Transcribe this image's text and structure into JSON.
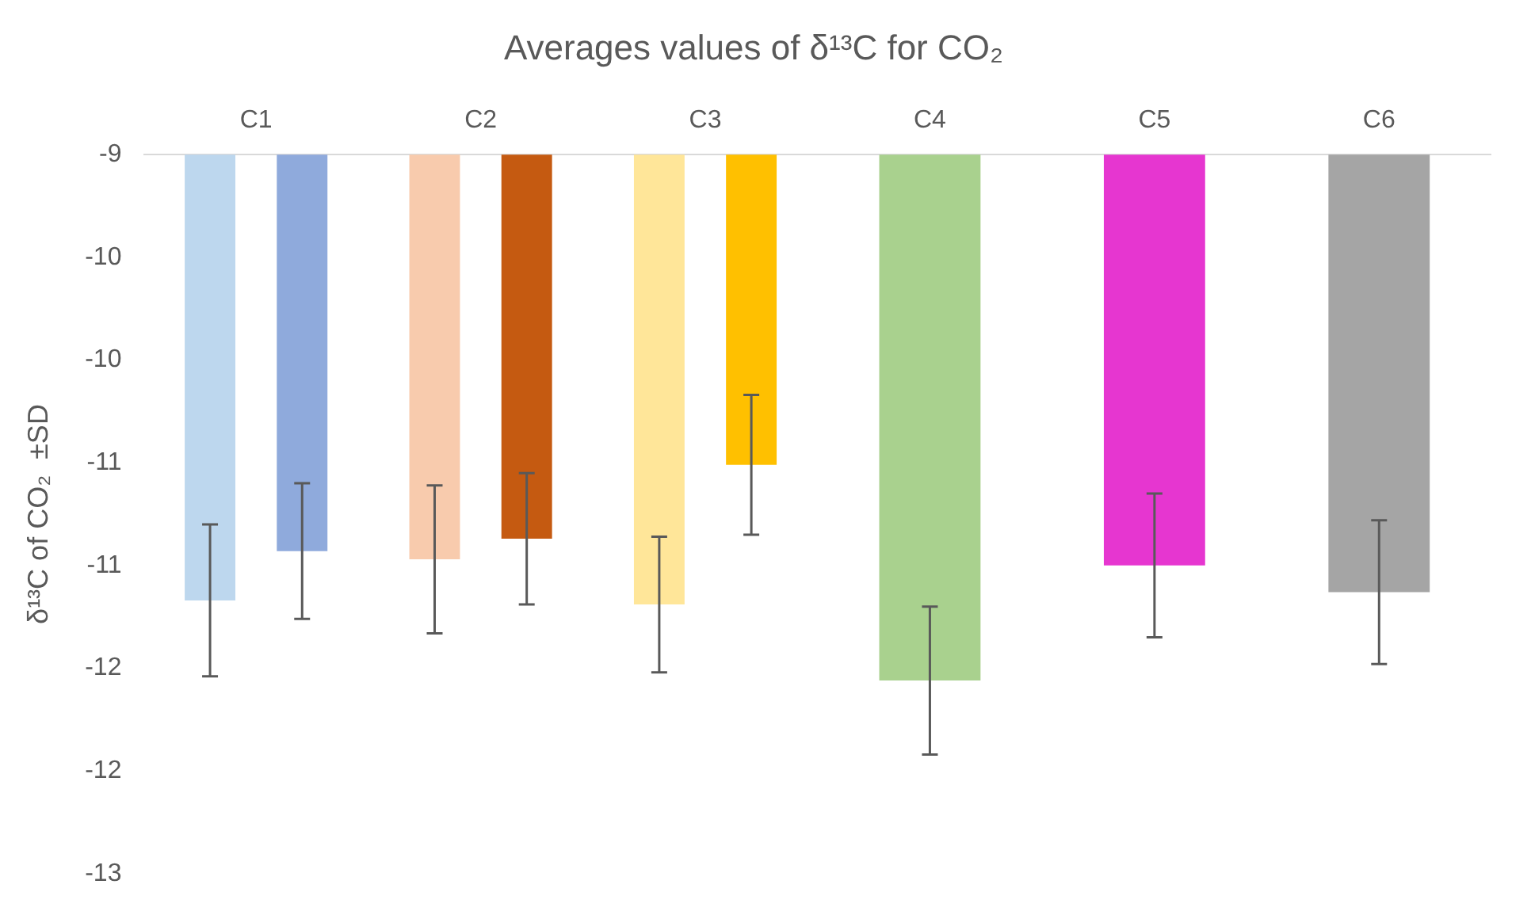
{
  "chart_data": {
    "type": "bar",
    "title": "Averages values of δ¹³C for CO₂",
    "ylabel": "δ¹³C of CO₂  ±SD",
    "categories": [
      "C1",
      "C2",
      "C3",
      "C4",
      "C5",
      "C6"
    ],
    "series": [
      {
        "colors": [
          "#bdd7ee",
          "#f8cbad",
          "#ffe699",
          "#a9d18e",
          "#e636d0",
          "#a5a5a5"
        ],
        "values": [
          -11.17,
          -10.97,
          -11.19,
          -11.56,
          -11.0,
          -11.13
        ],
        "errors": [
          0.37,
          0.36,
          0.33,
          0.36,
          0.35,
          0.35
        ]
      },
      {
        "colors": [
          "#8faadc",
          "#c55a11",
          "#ffc000",
          null,
          null,
          null
        ],
        "values": [
          -10.93,
          -10.87,
          -10.51,
          null,
          null,
          null
        ],
        "errors": [
          0.33,
          0.32,
          0.34,
          null,
          null,
          null
        ]
      }
    ],
    "ylim": [
      -12.5,
      -9
    ],
    "yticks": [
      -9,
      {
        "value": -9.5,
        "label": "-10"
      },
      -10,
      {
        "value": -10.5,
        "label": "-11"
      },
      -11,
      {
        "value": -11.5,
        "label": "-12"
      },
      -12,
      {
        "value": -12.5,
        "label": "-13"
      }
    ],
    "grid": false,
    "legend": false
  }
}
